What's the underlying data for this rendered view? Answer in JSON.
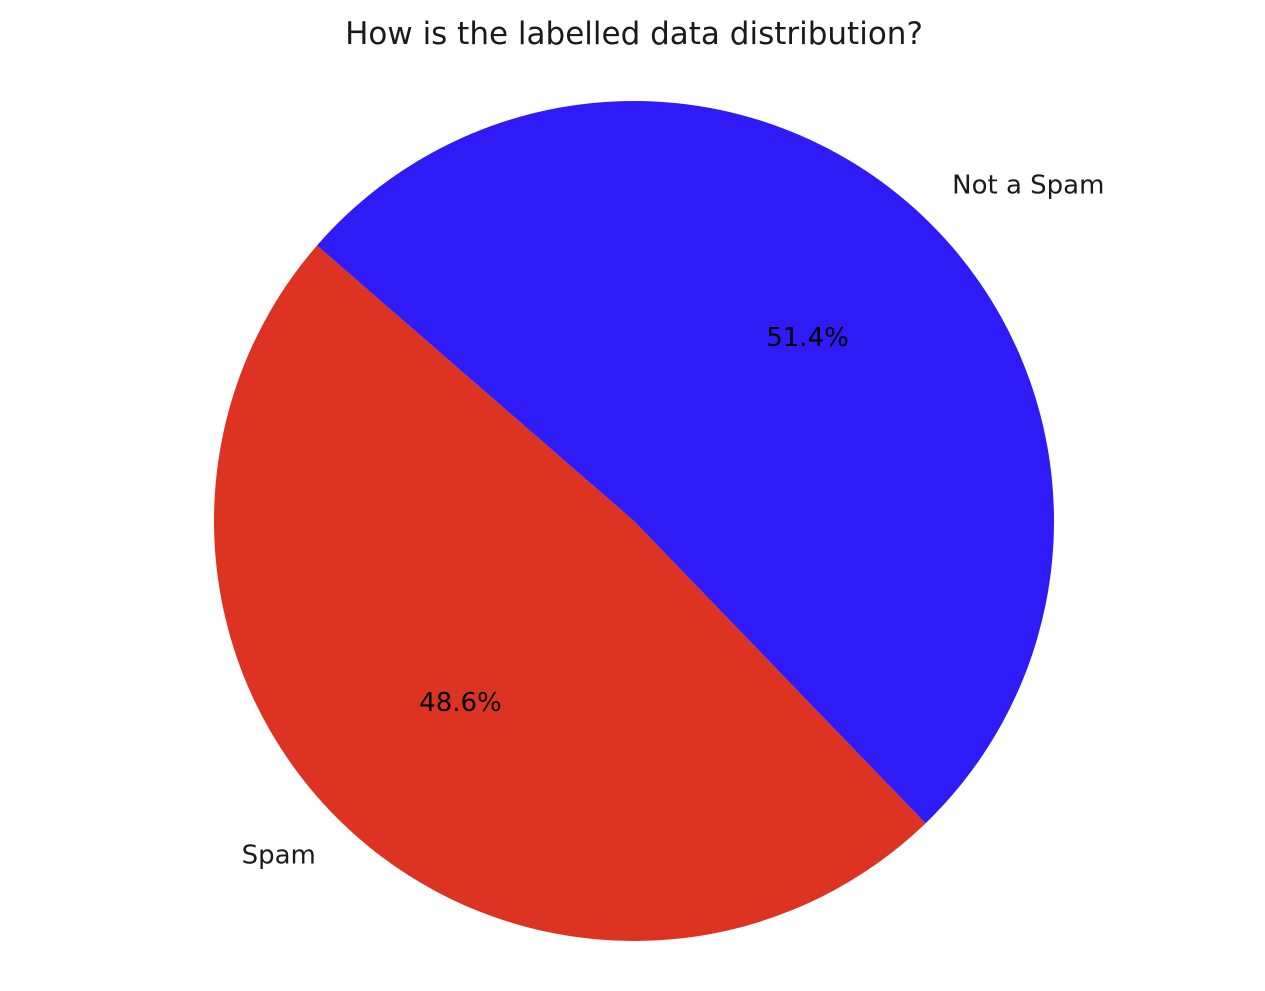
{
  "chart_data": {
    "type": "pie",
    "title": "How is the labelled data distribution?",
    "slices": [
      {
        "label": "Spam",
        "value": 48.6,
        "pct_label": "48.6%",
        "color": "#dd3322"
      },
      {
        "label": "Not a Spam",
        "value": 51.4,
        "pct_label": "51.4%",
        "color": "#2e1bf5"
      }
    ],
    "start_angle_deg": 139,
    "direction": "counterclockwise"
  }
}
